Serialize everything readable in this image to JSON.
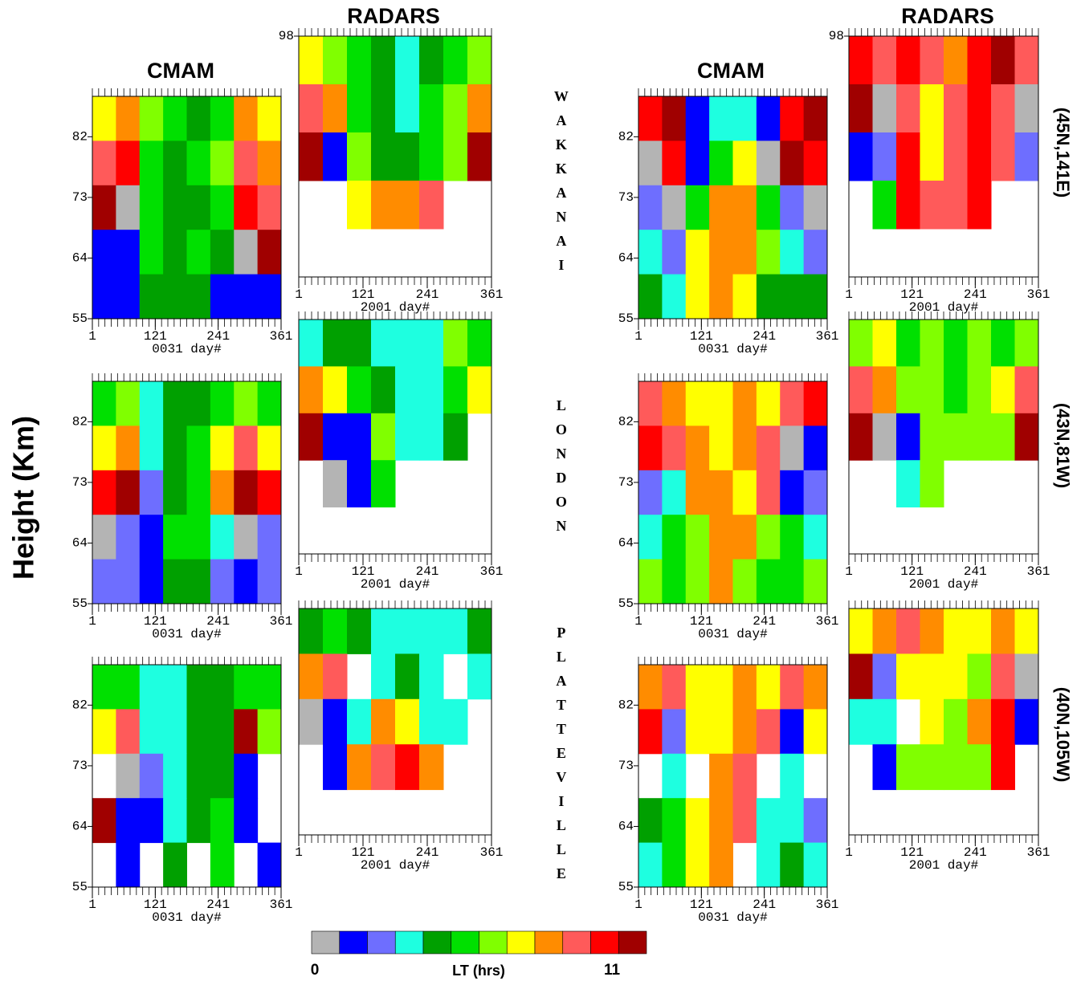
{
  "figure": {
    "y_label": "Height (Km)",
    "column_titles": [
      "CMAM",
      "RADARS",
      "CMAM",
      "RADARS"
    ],
    "stations": [
      {
        "name": "WAKKANAI",
        "coords": "(45N,141E)"
      },
      {
        "name": "LONDON",
        "coords": "(43N,81W)"
      },
      {
        "name": "PLATTEVILLE",
        "coords": "(40N,105W)"
      }
    ],
    "colorbar": {
      "title": "LT (hrs)",
      "ticks": [
        0,
        11
      ],
      "colors": [
        "#b4b4b4",
        "#0000ff",
        "#6e6eff",
        "#1effe0",
        "#00a000",
        "#00e000",
        "#80ff00",
        "#ffff00",
        "#ff8c00",
        "#ff5a5a",
        "#ff0000",
        "#a00000"
      ]
    }
  },
  "chart_data": [
    {
      "type": "heatmap",
      "xlabel": "0031 day#",
      "xlim": [
        1,
        361
      ],
      "xticks": [
        1,
        121,
        241,
        361
      ],
      "minor_xtick_step": 12,
      "ylim": [
        55,
        88
      ],
      "yticks": [
        55,
        64,
        73,
        82
      ],
      "z": [
        [
          7,
          8,
          6,
          5,
          4,
          5,
          8,
          7
        ],
        [
          9,
          10,
          5,
          4,
          5,
          6,
          9,
          8
        ],
        [
          11,
          0,
          5,
          4,
          4,
          5,
          10,
          9
        ],
        [
          1,
          1,
          5,
          4,
          5,
          4,
          0,
          11
        ],
        [
          1,
          1,
          4,
          4,
          4,
          1,
          1,
          1
        ]
      ]
    },
    {
      "type": "heatmap",
      "xlabel": "2001 day#",
      "xlim": [
        1,
        361
      ],
      "xticks": [
        1,
        121,
        241,
        361
      ],
      "minor_xtick_step": 12,
      "ylim": [
        60,
        98
      ],
      "yticks": [
        98
      ],
      "z": [
        [
          7,
          6,
          5,
          4,
          3,
          4,
          5,
          6
        ],
        [
          9,
          8,
          5,
          4,
          3,
          5,
          6,
          8
        ],
        [
          11,
          1,
          6,
          4,
          4,
          5,
          6,
          11
        ],
        [
          null,
          null,
          7,
          8,
          8,
          9,
          null,
          null
        ],
        [
          null,
          null,
          null,
          null,
          null,
          null,
          null,
          null
        ]
      ]
    },
    {
      "type": "heatmap",
      "xlabel": "0031 day#",
      "xlim": [
        1,
        361
      ],
      "xticks": [
        1,
        121,
        241,
        361
      ],
      "minor_xtick_step": 12,
      "ylim": [
        55,
        88
      ],
      "yticks": [
        55,
        64,
        73,
        82
      ],
      "z": [
        [
          10,
          11,
          1,
          3,
          3,
          1,
          10,
          11
        ],
        [
          0,
          10,
          1,
          5,
          7,
          0,
          11,
          10
        ],
        [
          2,
          0,
          5,
          8,
          8,
          5,
          2,
          0
        ],
        [
          3,
          2,
          7,
          8,
          8,
          6,
          3,
          2
        ],
        [
          4,
          3,
          7,
          8,
          7,
          4,
          4,
          4
        ]
      ]
    },
    {
      "type": "heatmap",
      "xlabel": "2001 day#",
      "xlim": [
        1,
        361
      ],
      "xticks": [
        1,
        121,
        241,
        361
      ],
      "minor_xtick_step": 12,
      "ylim": [
        60,
        98
      ],
      "yticks": [
        98
      ],
      "z": [
        [
          10,
          9,
          10,
          9,
          8,
          10,
          11,
          9
        ],
        [
          11,
          0,
          9,
          7,
          9,
          10,
          9,
          0
        ],
        [
          1,
          2,
          10,
          7,
          9,
          10,
          9,
          2
        ],
        [
          null,
          5,
          10,
          9,
          9,
          10,
          null,
          null
        ],
        [
          null,
          null,
          null,
          null,
          null,
          null,
          null,
          null
        ]
      ]
    },
    {
      "type": "heatmap",
      "xlabel": "0031 day#",
      "xlim": [
        1,
        361
      ],
      "xticks": [
        1,
        121,
        241,
        361
      ],
      "minor_xtick_step": 12,
      "ylim": [
        55,
        88
      ],
      "yticks": [
        55,
        64,
        73,
        82
      ],
      "z": [
        [
          5,
          6,
          3,
          4,
          4,
          5,
          6,
          5
        ],
        [
          7,
          8,
          3,
          4,
          5,
          7,
          9,
          7
        ],
        [
          10,
          11,
          2,
          4,
          5,
          8,
          11,
          10
        ],
        [
          0,
          2,
          1,
          5,
          5,
          3,
          0,
          2
        ],
        [
          2,
          2,
          1,
          4,
          4,
          2,
          1,
          2
        ]
      ]
    },
    {
      "type": "heatmap",
      "xlabel": "2001 day#",
      "xlim": [
        1,
        361
      ],
      "xticks": [
        1,
        121,
        241,
        361
      ],
      "minor_xtick_step": 12,
      "ylim": [
        60,
        98
      ],
      "yticks": [],
      "z": [
        [
          3,
          4,
          4,
          3,
          3,
          3,
          6,
          5
        ],
        [
          8,
          7,
          5,
          4,
          3,
          3,
          5,
          7
        ],
        [
          11,
          1,
          1,
          6,
          3,
          3,
          4,
          null
        ],
        [
          null,
          0,
          1,
          5,
          null,
          null,
          null,
          null
        ],
        [
          null,
          null,
          null,
          null,
          null,
          null,
          null,
          null
        ]
      ]
    },
    {
      "type": "heatmap",
      "xlabel": "0031 day#",
      "xlim": [
        1,
        361
      ],
      "xticks": [
        1,
        121,
        241,
        361
      ],
      "minor_xtick_step": 12,
      "ylim": [
        55,
        88
      ],
      "yticks": [
        55,
        64,
        73,
        82
      ],
      "z": [
        [
          9,
          8,
          7,
          7,
          8,
          7,
          9,
          10
        ],
        [
          10,
          9,
          8,
          7,
          8,
          9,
          0,
          1
        ],
        [
          2,
          3,
          8,
          8,
          7,
          9,
          1,
          2
        ],
        [
          3,
          5,
          6,
          8,
          8,
          6,
          5,
          3
        ],
        [
          6,
          5,
          6,
          8,
          6,
          5,
          5,
          6
        ]
      ]
    },
    {
      "type": "heatmap",
      "xlabel": "2001 day#",
      "xlim": [
        1,
        361
      ],
      "xticks": [
        1,
        121,
        241,
        361
      ],
      "minor_xtick_step": 12,
      "ylim": [
        60,
        98
      ],
      "yticks": [],
      "z": [
        [
          6,
          7,
          5,
          6,
          5,
          6,
          5,
          6
        ],
        [
          9,
          8,
          6,
          6,
          5,
          6,
          7,
          9
        ],
        [
          11,
          0,
          1,
          6,
          6,
          6,
          6,
          11
        ],
        [
          null,
          null,
          3,
          6,
          null,
          null,
          null,
          null
        ],
        [
          null,
          null,
          null,
          null,
          null,
          null,
          null,
          null
        ]
      ]
    },
    {
      "type": "heatmap",
      "xlabel": "0031 day#",
      "xlim": [
        1,
        361
      ],
      "xticks": [
        1,
        121,
        241,
        361
      ],
      "minor_xtick_step": 12,
      "ylim": [
        55,
        88
      ],
      "yticks": [
        55,
        64,
        73,
        82
      ],
      "z": [
        [
          5,
          5,
          3,
          3,
          4,
          4,
          5,
          5
        ],
        [
          7,
          9,
          3,
          3,
          4,
          4,
          11,
          6
        ],
        [
          null,
          0,
          2,
          3,
          4,
          4,
          1,
          null
        ],
        [
          11,
          1,
          1,
          3,
          4,
          5,
          1,
          null
        ],
        [
          null,
          1,
          null,
          4,
          null,
          5,
          null,
          1
        ]
      ]
    },
    {
      "type": "heatmap",
      "xlabel": "2001 day#",
      "xlim": [
        1,
        361
      ],
      "xticks": [
        1,
        121,
        241,
        361
      ],
      "minor_xtick_step": 12,
      "ylim": [
        60,
        98
      ],
      "yticks": [],
      "z": [
        [
          4,
          5,
          4,
          3,
          3,
          3,
          3,
          4
        ],
        [
          8,
          9,
          null,
          3,
          4,
          3,
          null,
          3
        ],
        [
          0,
          1,
          3,
          8,
          7,
          3,
          3,
          null
        ],
        [
          null,
          1,
          8,
          9,
          10,
          8,
          null,
          null
        ],
        [
          null,
          null,
          null,
          null,
          null,
          null,
          null,
          null
        ]
      ]
    },
    {
      "type": "heatmap",
      "xlabel": "0031 day#",
      "xlim": [
        1,
        361
      ],
      "xticks": [
        1,
        121,
        241,
        361
      ],
      "minor_xtick_step": 12,
      "ylim": [
        55,
        88
      ],
      "yticks": [
        55,
        64,
        73,
        82
      ],
      "z": [
        [
          8,
          9,
          7,
          7,
          8,
          7,
          9,
          8
        ],
        [
          10,
          2,
          7,
          7,
          8,
          9,
          1,
          7
        ],
        [
          null,
          3,
          null,
          8,
          9,
          null,
          3,
          null
        ],
        [
          4,
          5,
          7,
          8,
          9,
          3,
          3,
          2
        ],
        [
          3,
          5,
          7,
          8,
          null,
          3,
          4,
          3
        ]
      ]
    },
    {
      "type": "heatmap",
      "xlabel": "2001 day#",
      "xlim": [
        1,
        361
      ],
      "xticks": [
        1,
        121,
        241,
        361
      ],
      "minor_xtick_step": 12,
      "ylim": [
        60,
        98
      ],
      "yticks": [],
      "z": [
        [
          7,
          8,
          9,
          8,
          7,
          7,
          8,
          7
        ],
        [
          11,
          2,
          7,
          7,
          7,
          6,
          9,
          0
        ],
        [
          3,
          3,
          null,
          7,
          6,
          8,
          10,
          1
        ],
        [
          null,
          1,
          6,
          6,
          6,
          6,
          10,
          null
        ],
        [
          null,
          null,
          null,
          null,
          null,
          null,
          null,
          null
        ]
      ]
    }
  ]
}
